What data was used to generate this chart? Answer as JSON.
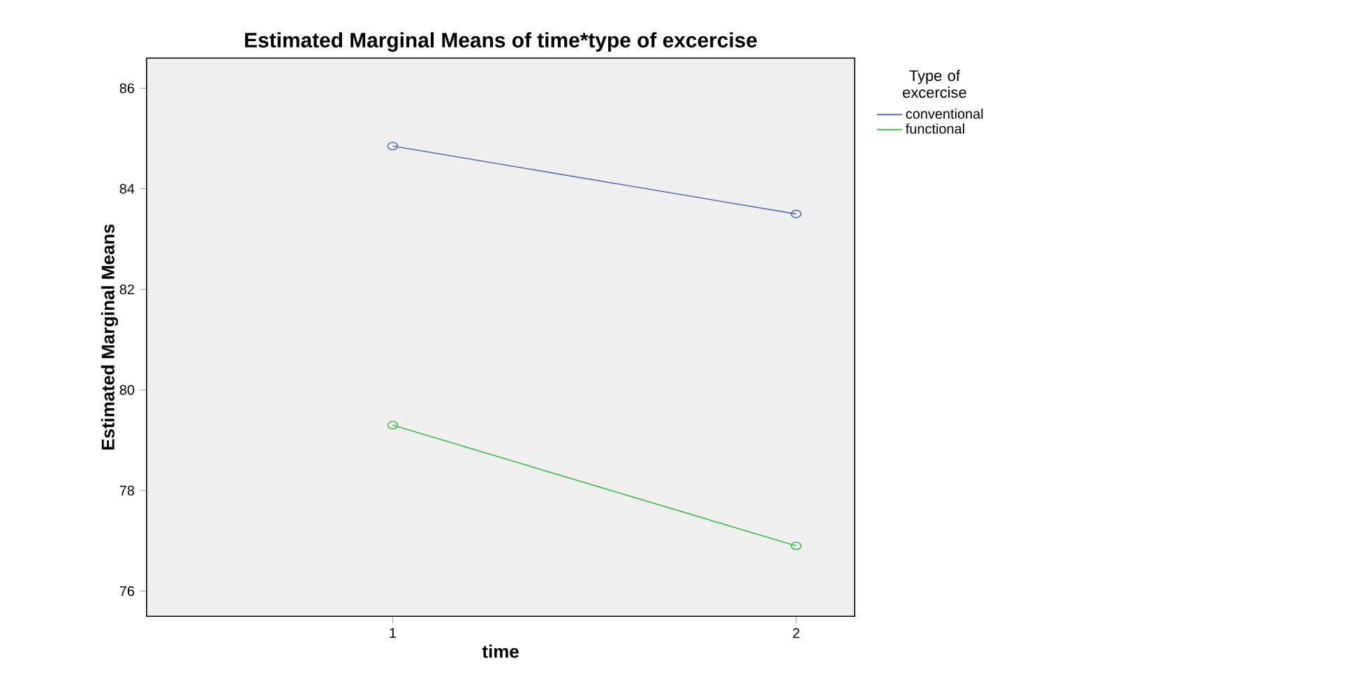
{
  "chart_data": {
    "type": "line",
    "title": "Estimated Marginal Means of time*type of excercise",
    "xlabel": "time",
    "ylabel": "Estimated Marginal Means",
    "legend_title": "Type of excercise",
    "categories": [
      "1",
      "2"
    ],
    "series": [
      {
        "name": "conventional",
        "color": "#5a6cc0",
        "values": [
          84.85,
          83.5
        ]
      },
      {
        "name": "functional",
        "color": "#3cc048",
        "values": [
          79.3,
          76.9
        ]
      }
    ],
    "ylim": [
      75.5,
      86.6
    ],
    "yticks": [
      76,
      78,
      80,
      82,
      84,
      86
    ],
    "grid": false,
    "legend": "top right",
    "marker": "circle",
    "line_style": "solid"
  }
}
